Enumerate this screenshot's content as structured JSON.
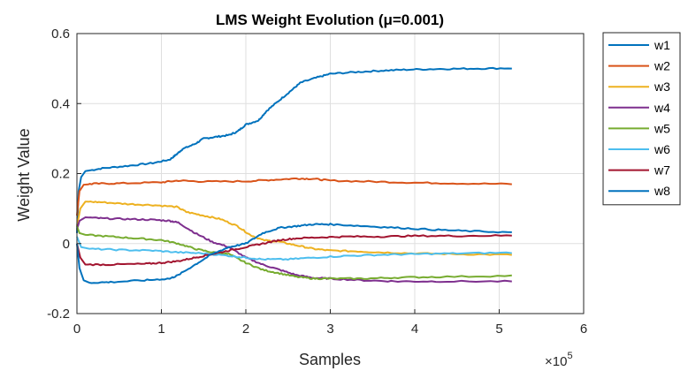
{
  "chart_data": {
    "type": "line",
    "title": "LMS Weight Evolution (μ=0.001)",
    "xlabel": "Samples",
    "ylabel": "Weight Value",
    "x_exponent_label": "×10",
    "x_exponent_power": "5",
    "xlim": [
      0,
      600000
    ],
    "ylim": [
      -0.2,
      0.6
    ],
    "xticks": [
      0,
      100000,
      200000,
      300000,
      400000,
      500000,
      600000
    ],
    "xtick_labels": [
      "0",
      "1",
      "2",
      "3",
      "4",
      "5",
      "6"
    ],
    "yticks": [
      -0.2,
      0,
      0.2,
      0.4,
      0.6
    ],
    "ytick_labels": [
      "-0.2",
      "0",
      "0.2",
      "0.4",
      "0.6"
    ],
    "grid": true,
    "legend_position": "outside-right",
    "series": [
      {
        "name": "w1",
        "color": "#0072BD",
        "points": [
          [
            0,
            0.03
          ],
          [
            2000,
            0.15
          ],
          [
            5000,
            0.19
          ],
          [
            10000,
            0.207
          ],
          [
            30000,
            0.215
          ],
          [
            60000,
            0.222
          ],
          [
            90000,
            0.23
          ],
          [
            110000,
            0.24
          ],
          [
            118000,
            0.255
          ],
          [
            125000,
            0.27
          ],
          [
            140000,
            0.285
          ],
          [
            150000,
            0.3
          ],
          [
            165000,
            0.305
          ],
          [
            180000,
            0.31
          ],
          [
            190000,
            0.32
          ],
          [
            200000,
            0.34
          ],
          [
            215000,
            0.352
          ],
          [
            225000,
            0.38
          ],
          [
            240000,
            0.41
          ],
          [
            255000,
            0.44
          ],
          [
            265000,
            0.46
          ],
          [
            285000,
            0.475
          ],
          [
            300000,
            0.485
          ],
          [
            330000,
            0.49
          ],
          [
            360000,
            0.494
          ],
          [
            390000,
            0.497
          ],
          [
            430000,
            0.499
          ],
          [
            470000,
            0.5
          ],
          [
            515000,
            0.501
          ]
        ]
      },
      {
        "name": "w2",
        "color": "#D95319",
        "points": [
          [
            0,
            0.08
          ],
          [
            3000,
            0.15
          ],
          [
            8000,
            0.168
          ],
          [
            20000,
            0.171
          ],
          [
            50000,
            0.172
          ],
          [
            100000,
            0.175
          ],
          [
            120000,
            0.18
          ],
          [
            150000,
            0.177
          ],
          [
            200000,
            0.178
          ],
          [
            230000,
            0.182
          ],
          [
            260000,
            0.186
          ],
          [
            280000,
            0.185
          ],
          [
            300000,
            0.18
          ],
          [
            350000,
            0.177
          ],
          [
            400000,
            0.174
          ],
          [
            450000,
            0.172
          ],
          [
            515000,
            0.17
          ]
        ]
      },
      {
        "name": "w3",
        "color": "#EDB120",
        "points": [
          [
            0,
            0.05
          ],
          [
            4000,
            0.1
          ],
          [
            10000,
            0.12
          ],
          [
            30000,
            0.118
          ],
          [
            60000,
            0.113
          ],
          [
            90000,
            0.11
          ],
          [
            118000,
            0.105
          ],
          [
            130000,
            0.09
          ],
          [
            150000,
            0.08
          ],
          [
            170000,
            0.07
          ],
          [
            190000,
            0.05
          ],
          [
            205000,
            0.025
          ],
          [
            220000,
            0.01
          ],
          [
            240000,
            0.005
          ],
          [
            260000,
            -0.005
          ],
          [
            280000,
            -0.015
          ],
          [
            300000,
            -0.02
          ],
          [
            330000,
            -0.022
          ],
          [
            360000,
            -0.025
          ],
          [
            400000,
            -0.028
          ],
          [
            450000,
            -0.03
          ],
          [
            515000,
            -0.032
          ]
        ]
      },
      {
        "name": "w4",
        "color": "#7E2F8E",
        "points": [
          [
            0,
            0.04
          ],
          [
            3000,
            0.065
          ],
          [
            10000,
            0.075
          ],
          [
            30000,
            0.072
          ],
          [
            60000,
            0.07
          ],
          [
            90000,
            0.068
          ],
          [
            110000,
            0.065
          ],
          [
            120000,
            0.06
          ],
          [
            140000,
            0.03
          ],
          [
            160000,
            0.005
          ],
          [
            180000,
            -0.01
          ],
          [
            200000,
            -0.04
          ],
          [
            220000,
            -0.06
          ],
          [
            240000,
            -0.075
          ],
          [
            260000,
            -0.09
          ],
          [
            280000,
            -0.098
          ],
          [
            300000,
            -0.1
          ],
          [
            340000,
            -0.105
          ],
          [
            380000,
            -0.108
          ],
          [
            430000,
            -0.108
          ],
          [
            515000,
            -0.108
          ]
        ]
      },
      {
        "name": "w5",
        "color": "#77AC30",
        "points": [
          [
            0,
            0.05
          ],
          [
            3000,
            0.03
          ],
          [
            10000,
            0.025
          ],
          [
            40000,
            0.02
          ],
          [
            70000,
            0.015
          ],
          [
            100000,
            0.01
          ],
          [
            120000,
            0.0
          ],
          [
            140000,
            -0.015
          ],
          [
            160000,
            -0.025
          ],
          [
            180000,
            -0.03
          ],
          [
            200000,
            -0.055
          ],
          [
            220000,
            -0.075
          ],
          [
            240000,
            -0.085
          ],
          [
            260000,
            -0.095
          ],
          [
            280000,
            -0.1
          ],
          [
            300000,
            -0.1
          ],
          [
            340000,
            -0.1
          ],
          [
            380000,
            -0.097
          ],
          [
            430000,
            -0.095
          ],
          [
            515000,
            -0.092
          ]
        ]
      },
      {
        "name": "w6",
        "color": "#4DBEEE",
        "points": [
          [
            0,
            0.02
          ],
          [
            5000,
            -0.01
          ],
          [
            15000,
            -0.015
          ],
          [
            50000,
            -0.018
          ],
          [
            90000,
            -0.02
          ],
          [
            120000,
            -0.025
          ],
          [
            150000,
            -0.028
          ],
          [
            180000,
            -0.035
          ],
          [
            200000,
            -0.04
          ],
          [
            220000,
            -0.045
          ],
          [
            250000,
            -0.045
          ],
          [
            280000,
            -0.04
          ],
          [
            320000,
            -0.035
          ],
          [
            360000,
            -0.032
          ],
          [
            400000,
            -0.03
          ],
          [
            450000,
            -0.028
          ],
          [
            515000,
            -0.026
          ]
        ]
      },
      {
        "name": "w7",
        "color": "#A2142F",
        "points": [
          [
            0,
            0.0
          ],
          [
            4000,
            -0.04
          ],
          [
            10000,
            -0.06
          ],
          [
            40000,
            -0.06
          ],
          [
            80000,
            -0.058
          ],
          [
            100000,
            -0.055
          ],
          [
            120000,
            -0.05
          ],
          [
            140000,
            -0.04
          ],
          [
            160000,
            -0.03
          ],
          [
            180000,
            -0.02
          ],
          [
            200000,
            -0.01
          ],
          [
            220000,
            0.0
          ],
          [
            240000,
            0.01
          ],
          [
            260000,
            0.015
          ],
          [
            290000,
            0.018
          ],
          [
            320000,
            0.02
          ],
          [
            360000,
            0.02
          ],
          [
            400000,
            0.022
          ],
          [
            450000,
            0.022
          ],
          [
            515000,
            0.023
          ]
        ]
      },
      {
        "name": "w8",
        "color": "#0072BD",
        "points": [
          [
            0,
            0.0
          ],
          [
            3000,
            -0.07
          ],
          [
            8000,
            -0.105
          ],
          [
            15000,
            -0.112
          ],
          [
            40000,
            -0.11
          ],
          [
            80000,
            -0.105
          ],
          [
            110000,
            -0.1
          ],
          [
            120000,
            -0.09
          ],
          [
            140000,
            -0.06
          ],
          [
            160000,
            -0.03
          ],
          [
            180000,
            -0.01
          ],
          [
            200000,
            0.0
          ],
          [
            220000,
            0.03
          ],
          [
            240000,
            0.045
          ],
          [
            260000,
            0.05
          ],
          [
            280000,
            0.055
          ],
          [
            300000,
            0.055
          ],
          [
            340000,
            0.05
          ],
          [
            380000,
            0.045
          ],
          [
            420000,
            0.04
          ],
          [
            460000,
            0.036
          ],
          [
            515000,
            0.032
          ]
        ]
      }
    ]
  }
}
